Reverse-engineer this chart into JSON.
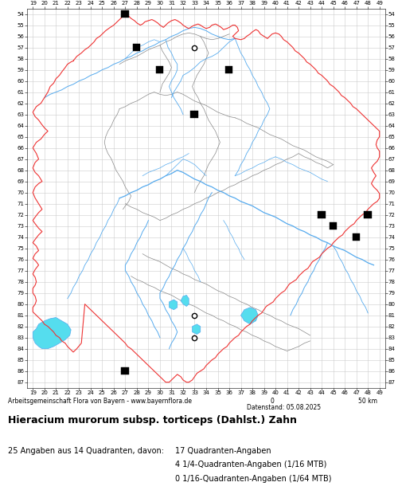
{
  "title": "Hieracium murorum subsp. torticeps (Dahlst.) Zahn",
  "subtitle_left": "Arbeitsgemeinschaft Flora von Bayern - www.bayernflora.de",
  "scale_text": "0          50 km",
  "date_text": "Datenstand: 05.08.2025",
  "stats_text": "25 Angaben aus 14 Quadranten, davon:",
  "stats_col2": [
    "17 Quadranten-Angaben",
    "4 1/4-Quadranten-Angaben (1/16 MTB)",
    "0 1/16-Quadranten-Angaben (1/64 MTB)"
  ],
  "x_min": 19,
  "x_max": 49,
  "y_min": 54,
  "y_max": 87,
  "grid_color": "#cccccc",
  "background_color": "#ffffff",
  "black_squares": [
    [
      27,
      54
    ],
    [
      28,
      57
    ],
    [
      30,
      59
    ],
    [
      36,
      59
    ],
    [
      33,
      63
    ],
    [
      44,
      72
    ],
    [
      48,
      72
    ],
    [
      45,
      73
    ],
    [
      47,
      74
    ],
    [
      27,
      86
    ]
  ],
  "open_circles": [
    [
      33,
      57
    ],
    [
      33,
      81
    ],
    [
      33,
      83
    ]
  ],
  "state_border_color": "#ee3333",
  "district_border_color": "#888888",
  "river_color": "#55aaee",
  "lake_fill_color": "#55ddee",
  "figsize": [
    5.0,
    6.2
  ],
  "dpi": 100
}
